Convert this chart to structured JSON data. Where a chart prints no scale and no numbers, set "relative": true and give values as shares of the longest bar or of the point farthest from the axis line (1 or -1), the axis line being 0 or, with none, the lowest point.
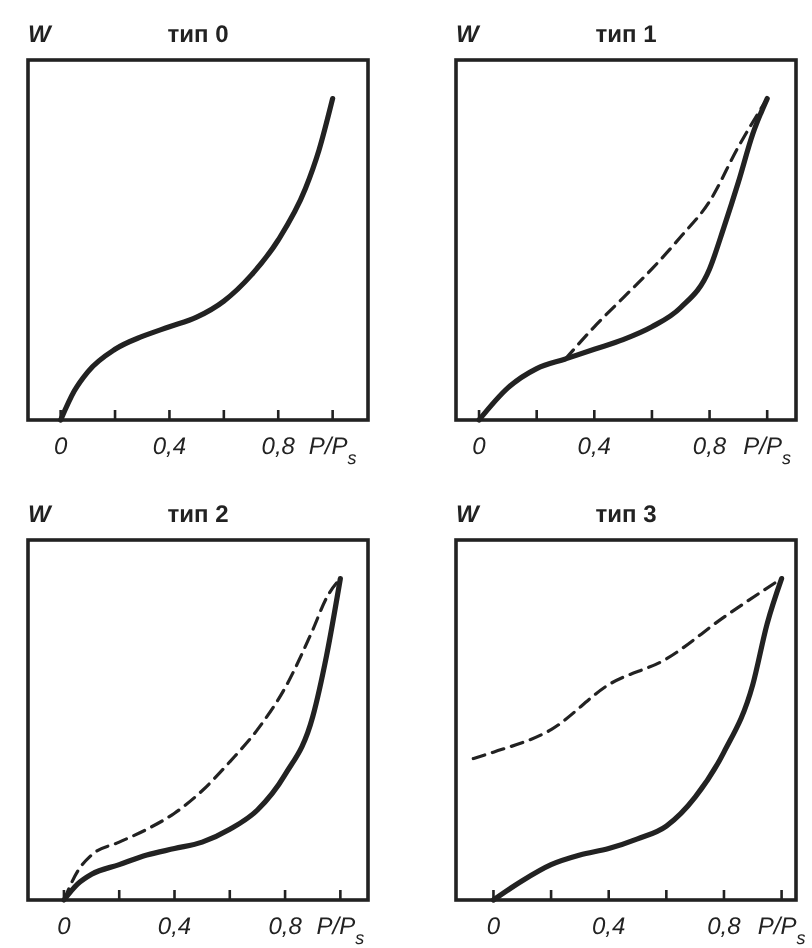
{
  "chart_data": [
    {
      "type": "line",
      "title": "тип 0",
      "ylabel": "W",
      "xlabel": "P/P$_{s}$",
      "relative": true,
      "xlim": [
        -0.12,
        1.13
      ],
      "xticks": [
        {
          "value": 0,
          "label": "0"
        },
        {
          "value": 0.2,
          "label": null
        },
        {
          "value": 0.4,
          "label": "0,4"
        },
        {
          "value": 0.6,
          "label": null
        },
        {
          "value": 0.8,
          "label": "0,8"
        },
        {
          "value": 1,
          "label": null
        }
      ],
      "series": [
        {
          "color": "#222222",
          "line_style": "solid",
          "x": [
            0,
            0.05,
            0.1,
            0.2,
            0.3,
            0.4,
            0.5,
            0.6,
            0.7,
            0.8,
            0.9,
            0.95,
            1.0
          ],
          "values": [
            0,
            0.09,
            0.15,
            0.22,
            0.26,
            0.29,
            0.32,
            0.37,
            0.45,
            0.56,
            0.72,
            0.84,
            1
          ]
        }
      ]
    },
    {
      "type": "line",
      "title": "тип 1",
      "ylabel": "W",
      "xlabel": "P/P$_{s}$",
      "relative": true,
      "xlim": [
        -0.08,
        1.1
      ],
      "xticks": [
        {
          "value": 0,
          "label": "0"
        },
        {
          "value": 0.2,
          "label": null
        },
        {
          "value": 0.4,
          "label": "0,4"
        },
        {
          "value": 0.6,
          "label": null
        },
        {
          "value": 0.8,
          "label": "0,8"
        },
        {
          "value": 1,
          "label": null
        }
      ],
      "series": [
        {
          "color": "#222222",
          "line_style": "solid",
          "x": [
            0,
            0.1,
            0.2,
            0.3,
            0.4,
            0.5,
            0.6,
            0.7,
            0.8,
            0.85,
            0.9,
            0.95,
            1.0
          ],
          "values": [
            0,
            0.1,
            0.16,
            0.19,
            0.22,
            0.25,
            0.29,
            0.35,
            0.47,
            0.6,
            0.74,
            0.89,
            1
          ]
        },
        {
          "color": "#222222",
          "line_style": "dashed",
          "x": [
            0.3,
            0.4,
            0.5,
            0.6,
            0.7,
            0.8,
            0.9,
            1.0
          ],
          "values": [
            0.19,
            0.29,
            0.38,
            0.47,
            0.57,
            0.68,
            0.85,
            1
          ]
        }
      ]
    },
    {
      "type": "line",
      "title": "тип 2",
      "ylabel": "W",
      "xlabel": "P/P$_{s}$",
      "relative": true,
      "xlim": [
        -0.13,
        1.1
      ],
      "xticks": [
        {
          "value": 0,
          "label": "0"
        },
        {
          "value": 0.2,
          "label": null
        },
        {
          "value": 0.4,
          "label": "0,4"
        },
        {
          "value": 0.6,
          "label": null
        },
        {
          "value": 0.8,
          "label": "0,8"
        },
        {
          "value": 1,
          "label": null
        }
      ],
      "series": [
        {
          "color": "#222222",
          "line_style": "solid",
          "x": [
            0,
            0.05,
            0.1,
            0.2,
            0.3,
            0.4,
            0.5,
            0.6,
            0.7,
            0.8,
            0.9,
            0.95,
            1.0
          ],
          "values": [
            0,
            0.05,
            0.08,
            0.11,
            0.14,
            0.16,
            0.18,
            0.22,
            0.28,
            0.39,
            0.57,
            0.76,
            1
          ]
        },
        {
          "color": "#222222",
          "line_style": "dashed",
          "x": [
            0,
            0.05,
            0.1,
            0.2,
            0.3,
            0.4,
            0.5,
            0.6,
            0.7,
            0.8,
            0.9,
            0.95,
            1.0
          ],
          "values": [
            0,
            0.09,
            0.14,
            0.18,
            0.22,
            0.27,
            0.34,
            0.43,
            0.53,
            0.66,
            0.84,
            0.94,
            1
          ]
        }
      ]
    },
    {
      "type": "line",
      "title": "тип 3",
      "ylabel": "W",
      "xlabel": "P/P$_{s}$",
      "relative": true,
      "xlim": [
        -0.13,
        1.05
      ],
      "xticks": [
        {
          "value": 0,
          "label": "0"
        },
        {
          "value": 0.2,
          "label": null
        },
        {
          "value": 0.4,
          "label": "0,4"
        },
        {
          "value": 0.6,
          "label": null
        },
        {
          "value": 0.8,
          "label": "0,8"
        },
        {
          "value": 1,
          "label": null
        }
      ],
      "series": [
        {
          "color": "#222222",
          "line_style": "solid",
          "x": [
            0,
            0.1,
            0.2,
            0.3,
            0.4,
            0.5,
            0.6,
            0.7,
            0.8,
            0.9,
            0.95,
            1.0
          ],
          "values": [
            0,
            0.06,
            0.11,
            0.14,
            0.16,
            0.19,
            0.23,
            0.32,
            0.46,
            0.67,
            0.86,
            1
          ]
        },
        {
          "color": "#222222",
          "line_style": "dashed",
          "x": [
            -0.07,
            0,
            0.2,
            0.4,
            0.6,
            0.8,
            1.0
          ],
          "values": [
            0.44,
            0.46,
            0.53,
            0.67,
            0.75,
            0.88,
            1
          ]
        }
      ]
    }
  ]
}
